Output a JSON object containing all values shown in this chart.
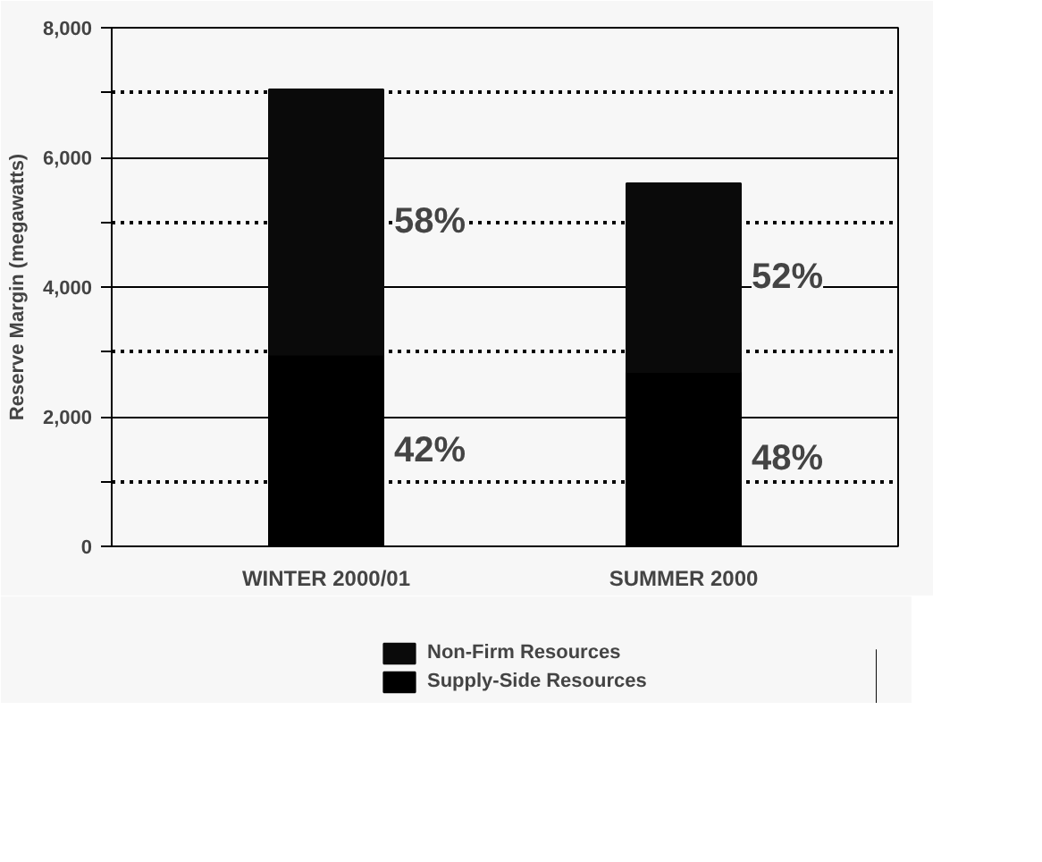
{
  "chart_data": {
    "type": "bar",
    "stacked": true,
    "categories": [
      "WINTER 2000/01",
      "SUMMER 2000"
    ],
    "ylabel": "Reserve Margin (megawatts)",
    "ylim": [
      0,
      8000
    ],
    "yticks": [
      0,
      {
        "value": 1000,
        "label": null
      },
      {
        "value": 2000,
        "label": "2,000"
      },
      {
        "value": 3000,
        "label": null
      },
      {
        "value": 4000,
        "label": "4,000"
      },
      {
        "value": 5000,
        "label": null
      },
      {
        "value": 6000,
        "label": "6,000"
      },
      {
        "value": 7000,
        "label": null
      },
      {
        "value": 8000,
        "label": "8,000"
      }
    ],
    "series": [
      {
        "name": "Supply-Side Resources",
        "color": "#000000",
        "values": [
          2960,
          2690
        ]
      },
      {
        "name": "Non-Firm Resources",
        "color": "#0a0a0a",
        "values": [
          4090,
          2910
        ]
      }
    ],
    "annotations": [
      "42%",
      "48%",
      "58%",
      "52%"
    ],
    "grid": "y",
    "legend": "bottom"
  }
}
